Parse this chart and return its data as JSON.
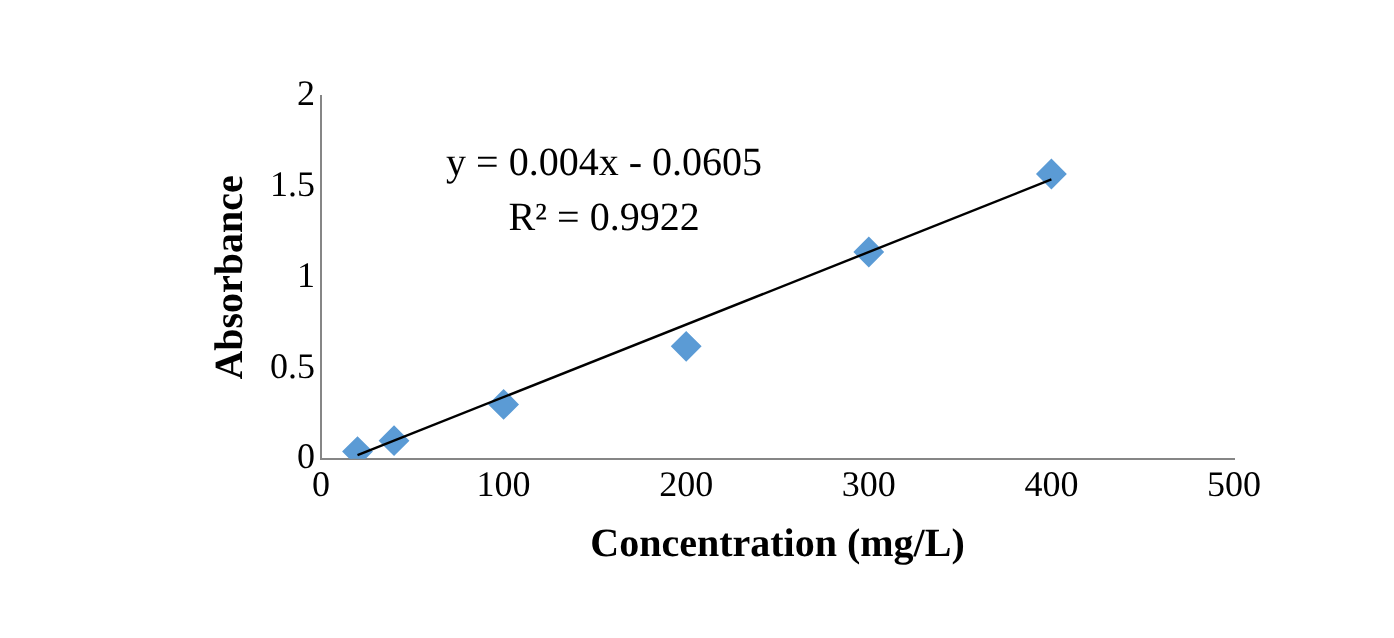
{
  "chart_data": {
    "type": "scatter",
    "xlabel": "Concentration (mg/L)",
    "ylabel": "Absorbance",
    "series": [
      {
        "color": "#5b9bd5",
        "marker": "diamond",
        "x": [
          20,
          40,
          100,
          200,
          300,
          400
        ],
        "values": [
          0.04,
          0.1,
          0.3,
          0.62,
          1.14,
          1.57
        ]
      },
      {
        "type": "line",
        "color": "#000000",
        "marker": "none",
        "x": [
          20,
          400
        ],
        "values": [
          0.02,
          1.54
        ]
      }
    ],
    "annotations": [
      "y = 0.004x - 0.0605",
      "R² = 0.9922"
    ],
    "xlim": [
      0,
      500
    ],
    "xticks": [
      0,
      100,
      200,
      300,
      400,
      500
    ],
    "ylim": [
      0,
      2
    ],
    "yticks": [
      0,
      0.5,
      1,
      1.5,
      2
    ],
    "grid": false,
    "legend": false
  }
}
